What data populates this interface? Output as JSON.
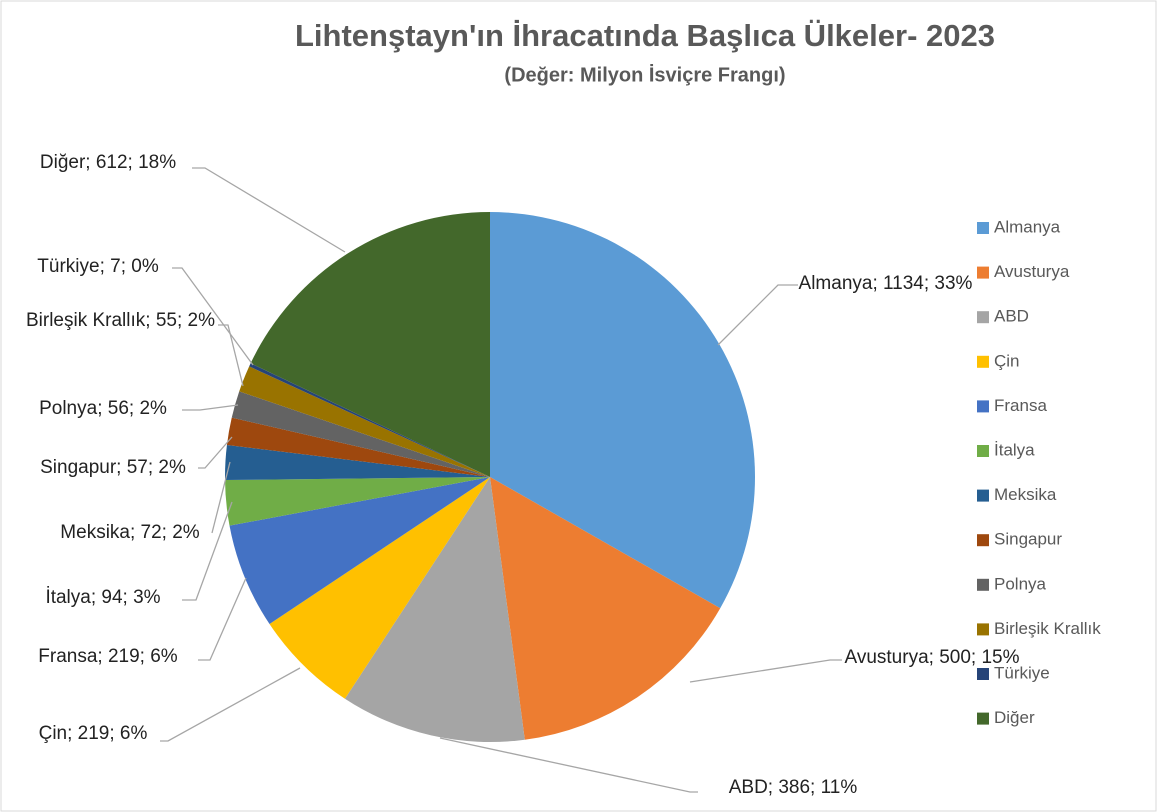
{
  "chart_data": {
    "type": "pie",
    "title": "Lihtenştayn'ın İhracatında Başlıca Ülkeler- 2023",
    "subtitle": "(Değer: Milyon İsviçre Frangı)",
    "categories": [
      "Almanya",
      "Avusturya",
      "ABD",
      "Çin",
      "Fransa",
      "İtalya",
      "Meksika",
      "Singapur",
      "Polnya",
      "Birleşik Krallık",
      "Türkiye",
      "Diğer"
    ],
    "values": [
      1134,
      500,
      386,
      219,
      219,
      94,
      72,
      57,
      56,
      55,
      7,
      612
    ],
    "value_labels": [
      "Almanya; 1134; 33%",
      "Avusturya; 500; 15%",
      "ABD; 386; 11%",
      "Çin; 219; 6%",
      "Fransa; 219; 6%",
      "İtalya; 94; 3%",
      "Meksika; 72; 2%",
      "Singapur; 57; 2%",
      "Polnya; 56; 2%",
      "Birleşik Krallık; 55; 2%",
      "Türkiye; 7; 0%",
      "Diğer; 612; 18%"
    ],
    "colors": [
      "#5b9bd5",
      "#ed7d31",
      "#a5a5a5",
      "#ffc000",
      "#4472c4",
      "#70ad47",
      "#255e91",
      "#9e480e",
      "#636363",
      "#997300",
      "#264478",
      "#43682b"
    ],
    "legend": "right"
  }
}
